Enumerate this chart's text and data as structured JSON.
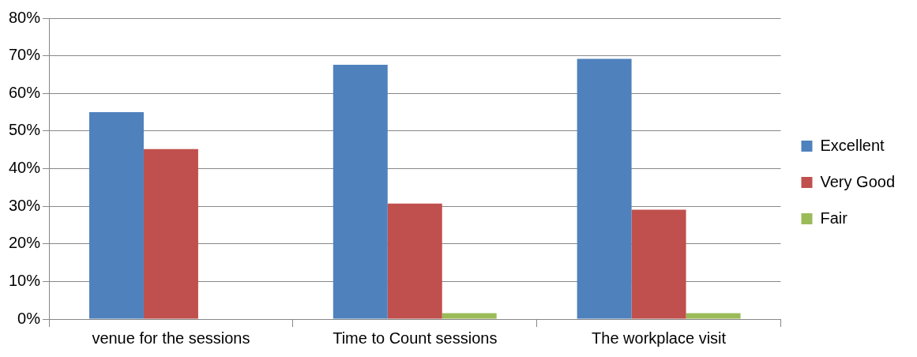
{
  "chart_data": {
    "type": "bar",
    "categories": [
      "venue for the sessions",
      "Time to Count sessions",
      "The workplace visit"
    ],
    "series": [
      {
        "name": "Excellent",
        "color": "#4f81bd",
        "values": [
          55,
          67.6,
          69.2
        ]
      },
      {
        "name": "Very Good",
        "color": "#c0504d",
        "values": [
          45.2,
          30.7,
          29.1
        ]
      },
      {
        "name": "Fair",
        "color": "#9bbb59",
        "values": [
          0,
          1.6,
          1.6
        ]
      }
    ],
    "ylim": [
      0,
      80
    ],
    "yticks": [
      {
        "value": 0,
        "label": "0%"
      },
      {
        "value": 10,
        "label": "10%"
      },
      {
        "value": 20,
        "label": "20%"
      },
      {
        "value": 30,
        "label": "30%"
      },
      {
        "value": 40,
        "label": "40%"
      },
      {
        "value": 50,
        "label": "50%"
      },
      {
        "value": 60,
        "label": "60%"
      },
      {
        "value": 70,
        "label": "70%"
      },
      {
        "value": 80,
        "label": "80%"
      }
    ],
    "grid": "y",
    "legend": "right"
  }
}
